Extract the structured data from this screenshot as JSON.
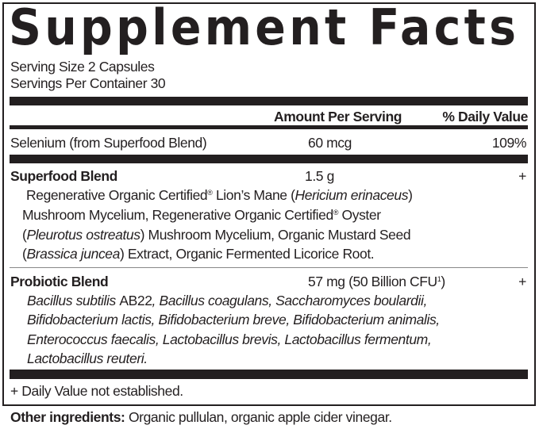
{
  "title": "Supplement Facts",
  "serving_size": "Serving Size 2 Capsules",
  "servings_per_container": "Servings Per Container 30",
  "header": {
    "amount": "Amount Per Serving",
    "daily_value": "% Daily Value"
  },
  "selenium": {
    "name": "Selenium (from Superfood Blend)",
    "amount": "60 mcg",
    "dv": "109%"
  },
  "superfood": {
    "name": "Superfood Blend",
    "amount": "1.5 g",
    "dv": "+",
    "l1a": "Regenerative Organic Certified",
    "reg": "®",
    "l1b": " Lion’s Mane (",
    "l1c": "Hericium erinaceus",
    "l1d": ")",
    "l2a": "Mushroom Mycelium, Regenerative Organic Certified",
    "l2b": " Oyster",
    "l3a": "(",
    "l3b": "Pleurotus ostreatus",
    "l3c": ") Mushroom Mycelium, Organic Mustard Seed",
    "l4a": "(",
    "l4b": "Brassica juncea",
    "l4c": ") Extract, Organic Fermented Licorice Root."
  },
  "probiotic": {
    "name": "Probiotic Blend",
    "amount": "57 mg (50 Billion CFU",
    "sup": "1",
    "amount_end": ")",
    "dv": "+",
    "lines": [
      "Bacillus subtilis AB22, Bacillus coagulans, Saccharomyces boulardii,",
      "Bifidobacterium lactis, Bifidobacterium breve, Bifidobacterium animalis,",
      "Enterococcus faecalis, Lactobacillus brevis, Lactobacillus fermentum,",
      "Lactobacillus reuteri."
    ],
    "strain_code": "AB22"
  },
  "footnote": "+ Daily Value not established.",
  "other": {
    "label": "Other ingredients:",
    "text": " Organic pullulan, organic apple cider vinegar."
  }
}
